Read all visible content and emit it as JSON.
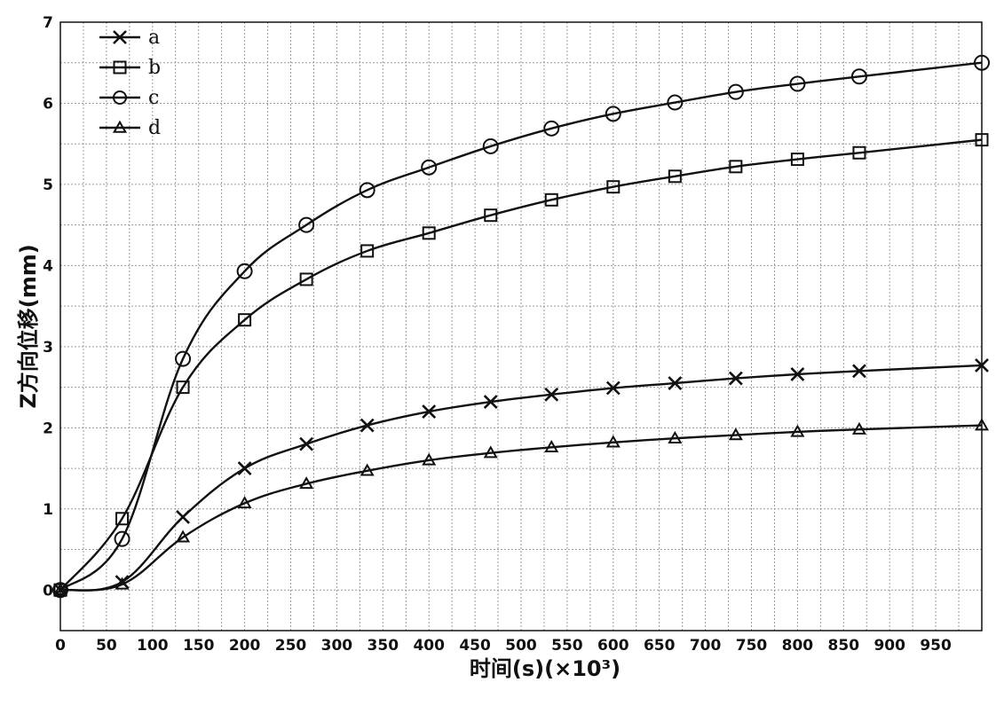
{
  "chart_data": {
    "type": "line",
    "xlabel": "时间(s)(×10³)",
    "ylabel": "Z方向位移(mm)",
    "xlim": [
      0,
      1000
    ],
    "ylim": [
      -0.5,
      7
    ],
    "xticks": [
      0,
      50,
      100,
      150,
      200,
      250,
      300,
      350,
      400,
      450,
      500,
      550,
      600,
      650,
      700,
      750,
      800,
      850,
      900,
      950
    ],
    "yticks": [
      0,
      1,
      2,
      3,
      4,
      5,
      6,
      7
    ],
    "grid": true,
    "legend_position": "top-left",
    "series": [
      {
        "name": "a",
        "marker": "x",
        "x": [
          0,
          67,
          133,
          200,
          267,
          333,
          400,
          467,
          533,
          600,
          667,
          733,
          800,
          867,
          1000
        ],
        "y": [
          0,
          0.1,
          0.9,
          1.5,
          1.8,
          2.03,
          2.2,
          2.32,
          2.41,
          2.49,
          2.55,
          2.61,
          2.66,
          2.7,
          2.77
        ]
      },
      {
        "name": "b",
        "marker": "square",
        "x": [
          0,
          67,
          133,
          200,
          267,
          333,
          400,
          467,
          533,
          600,
          667,
          733,
          800,
          867,
          1000
        ],
        "y": [
          0,
          0.88,
          2.5,
          3.33,
          3.83,
          4.18,
          4.4,
          4.62,
          4.81,
          4.97,
          5.1,
          5.22,
          5.31,
          5.39,
          5.55
        ]
      },
      {
        "name": "c",
        "marker": "circle",
        "x": [
          0,
          67,
          133,
          200,
          267,
          333,
          400,
          467,
          533,
          600,
          667,
          733,
          800,
          867,
          1000
        ],
        "y": [
          0,
          0.63,
          2.85,
          3.93,
          4.5,
          4.93,
          5.21,
          5.47,
          5.69,
          5.87,
          6.01,
          6.14,
          6.24,
          6.33,
          6.5
        ]
      },
      {
        "name": "d",
        "marker": "triangle",
        "x": [
          0,
          67,
          133,
          200,
          267,
          333,
          400,
          467,
          533,
          600,
          667,
          733,
          800,
          867,
          1000
        ],
        "y": [
          0,
          0.07,
          0.65,
          1.07,
          1.31,
          1.47,
          1.6,
          1.69,
          1.76,
          1.82,
          1.87,
          1.91,
          1.95,
          1.98,
          2.03
        ]
      }
    ]
  }
}
